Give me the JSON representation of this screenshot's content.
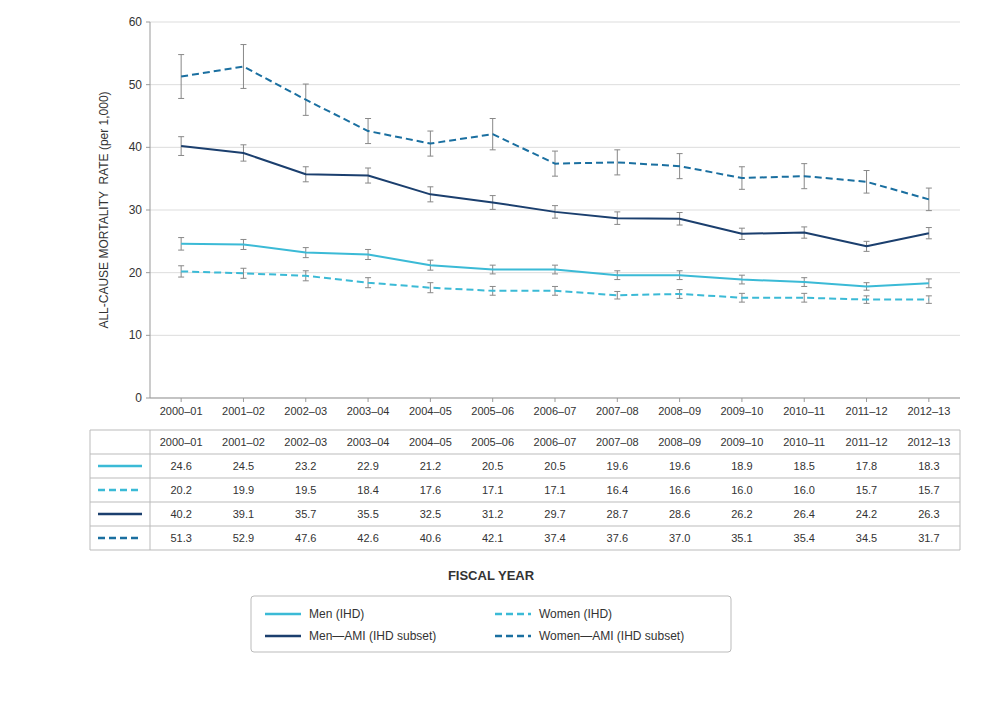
{
  "chart_data": {
    "type": "line",
    "categories": [
      "2000–01",
      "2001–02",
      "2002–03",
      "2003–04",
      "2004–05",
      "2005–06",
      "2006–07",
      "2007–08",
      "2008–09",
      "2009–10",
      "2010–11",
      "2011–12",
      "2012–13"
    ],
    "series": [
      {
        "name": "Men (IHD)",
        "color": "#3BBAD6",
        "line_style": "solid",
        "values": [
          24.6,
          24.5,
          23.2,
          22.9,
          21.2,
          20.5,
          20.5,
          19.6,
          19.6,
          18.9,
          18.5,
          17.8,
          18.3
        ],
        "value_labels": [
          "24.6",
          "24.5",
          "23.2",
          "22.9",
          "21.2",
          "20.5",
          "20.5",
          "19.6",
          "19.6",
          "18.9",
          "18.5",
          "17.8",
          "18.3"
        ],
        "errors": [
          1.0,
          0.8,
          0.8,
          0.8,
          0.8,
          0.7,
          0.7,
          0.7,
          0.7,
          0.7,
          0.7,
          0.6,
          0.7
        ]
      },
      {
        "name": "Women (IHD)",
        "color": "#3BBAD6",
        "line_style": "dashed",
        "values": [
          20.2,
          19.9,
          19.5,
          18.4,
          17.6,
          17.1,
          17.1,
          16.4,
          16.6,
          16.0,
          16.0,
          15.7,
          15.7
        ],
        "value_labels": [
          "20.2",
          "19.9",
          "19.5",
          "18.4",
          "17.6",
          "17.1",
          "17.1",
          "16.4",
          "16.6",
          "16.0",
          "16.0",
          "15.7",
          "15.7"
        ],
        "errors": [
          0.9,
          0.8,
          0.8,
          0.8,
          0.8,
          0.7,
          0.7,
          0.6,
          0.7,
          0.7,
          0.7,
          0.6,
          0.6
        ]
      },
      {
        "name": "Men—AMI (IHD subset)",
        "color": "#1B3F6E",
        "line_style": "solid",
        "values": [
          40.2,
          39.1,
          35.7,
          35.5,
          32.5,
          31.2,
          29.7,
          28.7,
          28.6,
          26.2,
          26.4,
          24.2,
          26.3
        ],
        "value_labels": [
          "40.2",
          "39.1",
          "35.7",
          "35.5",
          "32.5",
          "31.2",
          "29.7",
          "28.7",
          "28.6",
          "26.2",
          "26.4",
          "24.2",
          "26.3"
        ],
        "errors": [
          1.5,
          1.3,
          1.2,
          1.2,
          1.2,
          1.1,
          1.0,
          1.0,
          1.0,
          0.9,
          0.9,
          0.8,
          0.9
        ]
      },
      {
        "name": "Women—AMI (IHD subset)",
        "color": "#1A6FA0",
        "line_style": "dashed",
        "values": [
          51.3,
          52.9,
          47.6,
          42.6,
          40.6,
          42.1,
          37.4,
          37.6,
          37.0,
          35.1,
          35.4,
          34.5,
          31.7
        ],
        "value_labels": [
          "51.3",
          "52.9",
          "47.6",
          "42.6",
          "40.6",
          "42.1",
          "37.4",
          "37.6",
          "37.0",
          "35.1",
          "35.4",
          "34.5",
          "31.7"
        ],
        "errors": [
          3.5,
          3.5,
          2.5,
          2.0,
          2.0,
          2.5,
          2.0,
          2.0,
          2.0,
          1.8,
          2.0,
          1.8,
          1.8
        ]
      }
    ],
    "xlabel": "FISCAL YEAR",
    "ylabel": "ALL-CAUSE MORTALITY  RATE (per 1,000)",
    "ylim": [
      0,
      60
    ],
    "yticks": [
      0,
      10,
      20,
      30,
      40,
      50,
      60
    ],
    "grid": true
  }
}
